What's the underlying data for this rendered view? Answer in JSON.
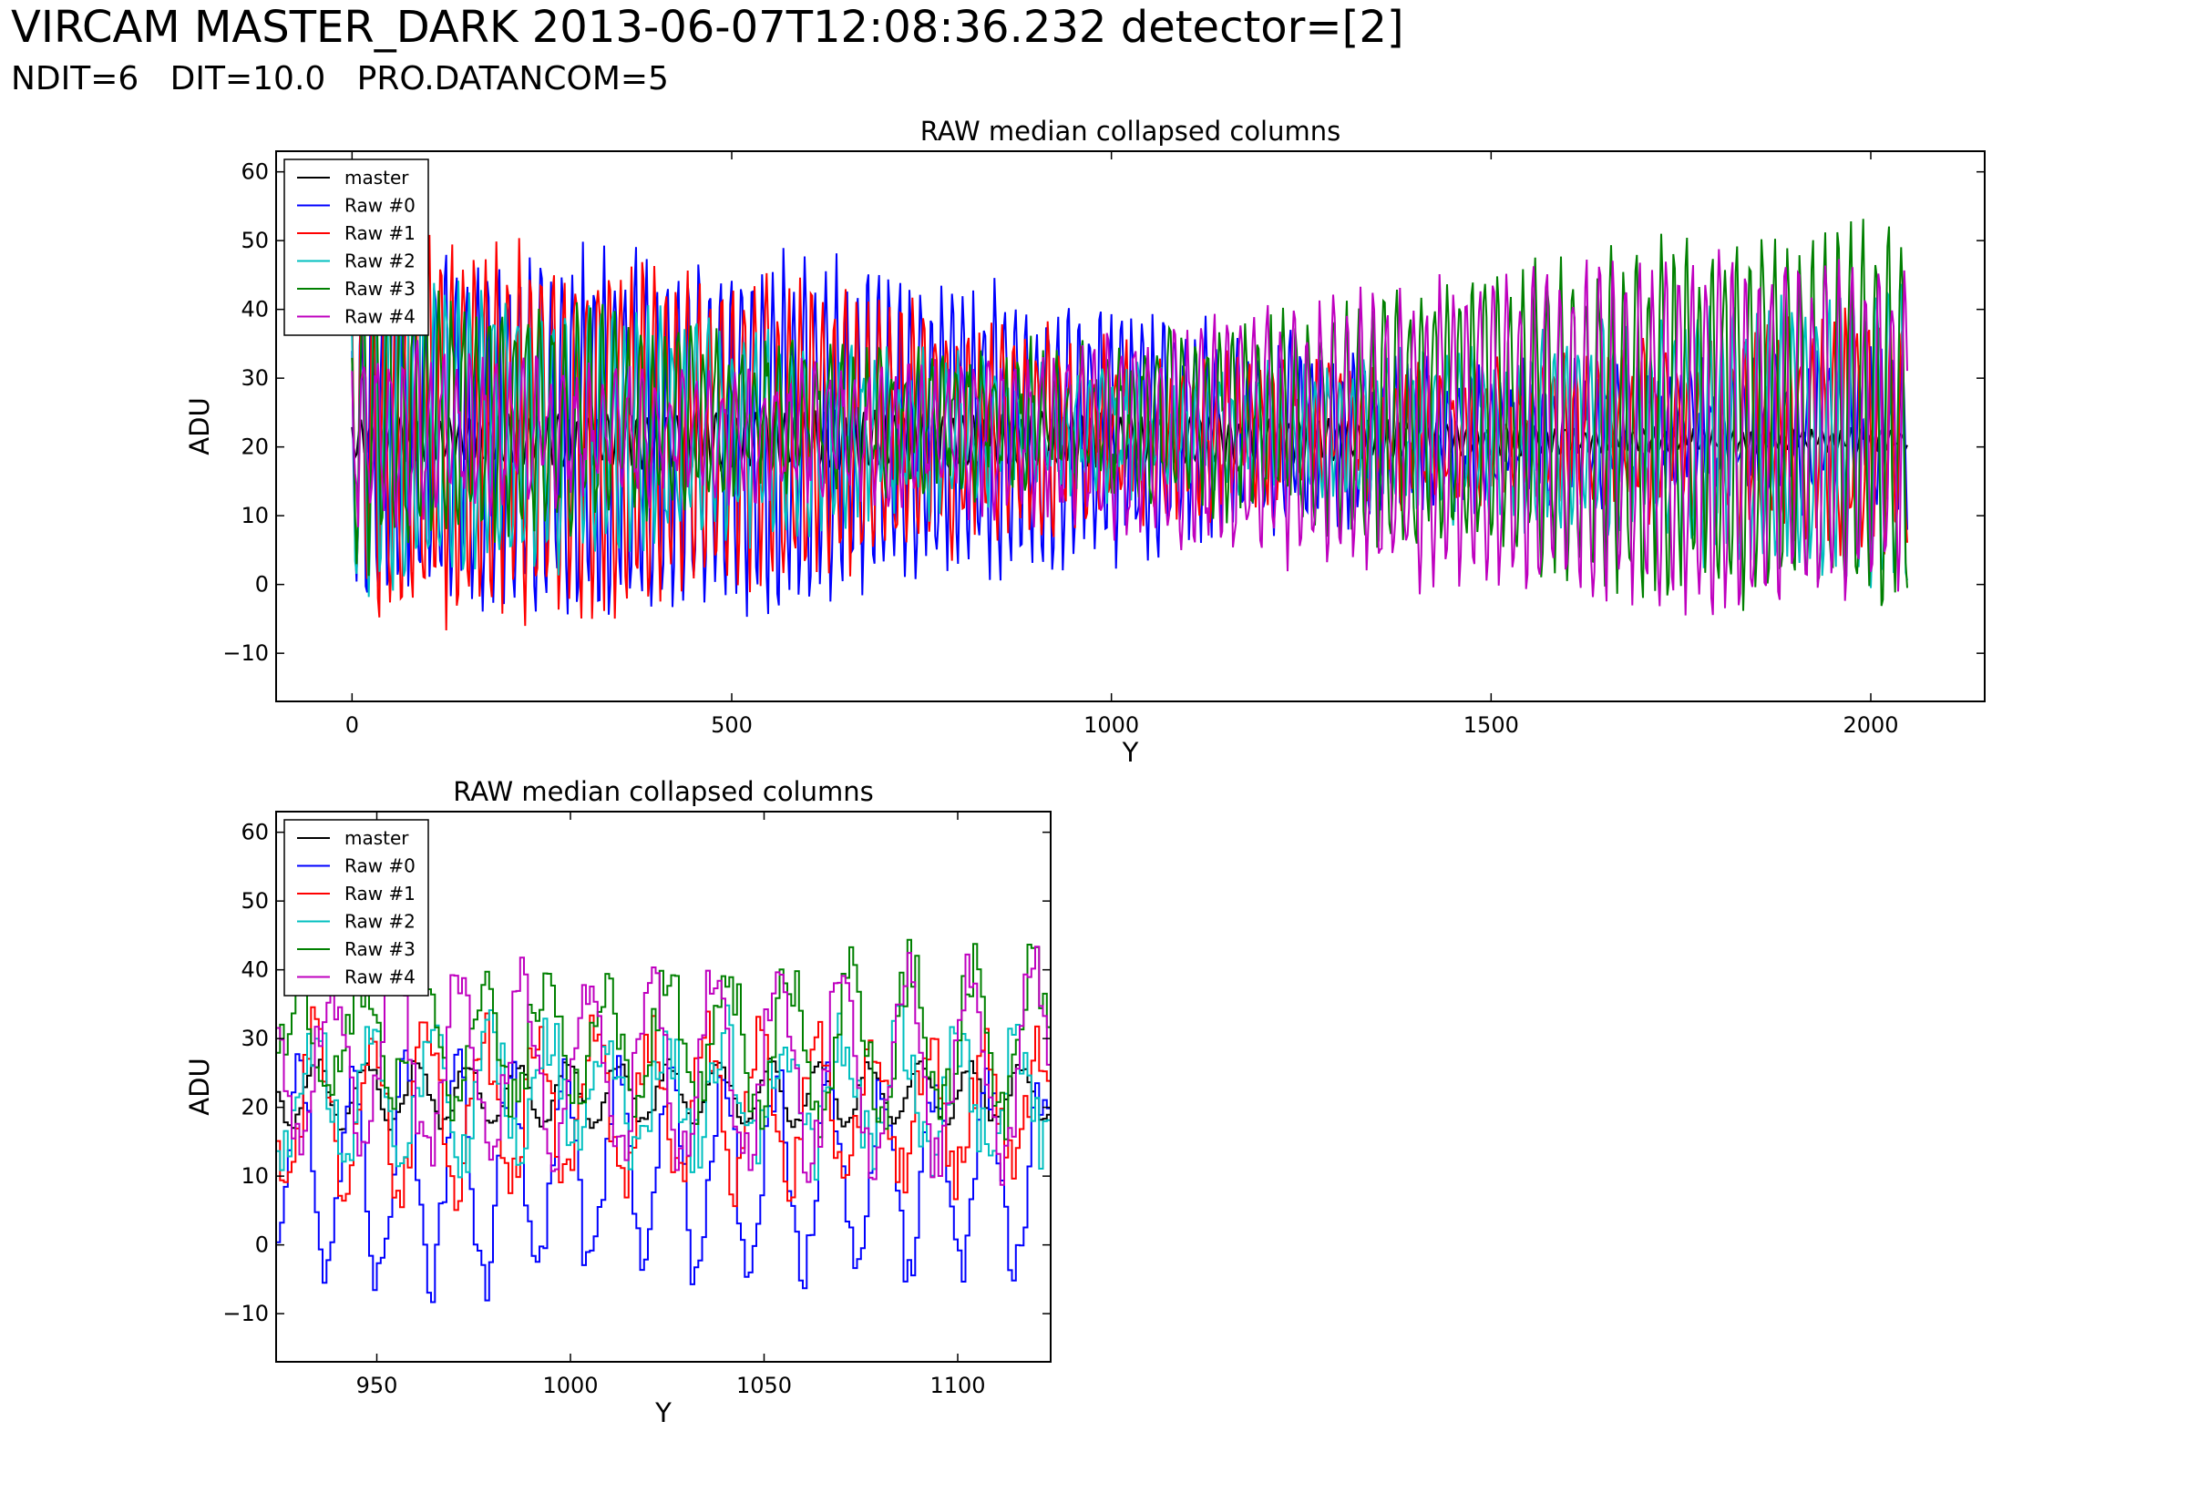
{
  "header": {
    "title": "VIRCAM MASTER_DARK 2013-06-07T12:08:36.232 detector=[2]",
    "subtitle": "NDIT=6   DIT=10.0   PRO.DATANCOM=5"
  },
  "chart_data": [
    {
      "type": "line",
      "title": "RAW median collapsed columns",
      "xlabel": "Y",
      "ylabel": "ADU",
      "xlim": [
        -100,
        2150
      ],
      "ylim": [
        -17,
        63
      ],
      "xticks": [
        0,
        500,
        1000,
        1500,
        2000
      ],
      "yticks": [
        -10,
        0,
        10,
        20,
        30,
        40,
        50,
        60
      ],
      "grid": false,
      "legend": "top-left",
      "x_range_of_data": [
        0,
        2048
      ],
      "series": [
        {
          "name": "master",
          "color": "#000000",
          "mean": 21,
          "amplitude": 4
        },
        {
          "name": "Raw #0",
          "color": "#0000ff",
          "mean": 22,
          "amplitude": 24
        },
        {
          "name": "Raw #1",
          "color": "#ff0000",
          "mean": 22,
          "amplitude": 25
        },
        {
          "name": "Raw #2",
          "color": "#00bfbf",
          "mean": 22,
          "amplitude": 23
        },
        {
          "name": "Raw #3",
          "color": "#008000",
          "mean": 24,
          "amplitude": 26
        },
        {
          "name": "Raw #4",
          "color": "#bf00bf",
          "mean": 22,
          "amplitude": 23
        }
      ]
    },
    {
      "type": "line",
      "title": "RAW median collapsed columns",
      "xlabel": "Y",
      "ylabel": "ADU",
      "xlim": [
        924,
        1124
      ],
      "ylim": [
        -17,
        63
      ],
      "xticks": [
        950,
        1000,
        1050,
        1100
      ],
      "yticks": [
        -10,
        0,
        10,
        20,
        30,
        40,
        50,
        60
      ],
      "grid": false,
      "legend": "top-left",
      "drawstyle": "steps",
      "series": [
        {
          "name": "master",
          "color": "#000000",
          "mean": 22,
          "amplitude": 5
        },
        {
          "name": "Raw #0",
          "color": "#0000ff",
          "mean": 10,
          "amplitude": 22
        },
        {
          "name": "Raw #1",
          "color": "#ff0000",
          "mean": 20,
          "amplitude": 25
        },
        {
          "name": "Raw #2",
          "color": "#00bfbf",
          "mean": 22,
          "amplitude": 28
        },
        {
          "name": "Raw #3",
          "color": "#008000",
          "mean": 30,
          "amplitude": 26
        },
        {
          "name": "Raw #4",
          "color": "#bf00bf",
          "mean": 26,
          "amplitude": 24
        }
      ]
    }
  ]
}
